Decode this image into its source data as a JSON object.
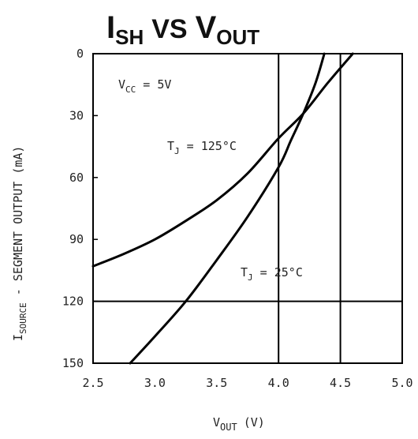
{
  "chart_data": {
    "type": "line",
    "title": {
      "main_I": "I",
      "main_I_sub": "SH",
      "vs": "VS",
      "main_V": "V",
      "main_V_sub": "OUT"
    },
    "xlabel": {
      "main": "V",
      "sub": "OUT",
      "unit": "(V)"
    },
    "ylabel": {
      "main": "I",
      "sub": "SOURCE",
      "rest": " - SEGMENT OUTPUT (mA)"
    },
    "xlim": [
      2.5,
      5.0
    ],
    "ylim": [
      0,
      150
    ],
    "y_inverted": true,
    "x_ticks": [
      "2.5",
      "3.0",
      "3.5",
      "4.0",
      "4.5",
      "5.0"
    ],
    "y_ticks": [
      "0",
      "30",
      "60",
      "90",
      "120",
      "150"
    ],
    "grid": "partial",
    "annotations": [
      {
        "text_main": "V",
        "text_sub": "CC",
        "text_rest": " = 5V"
      },
      {
        "text_main": "T",
        "text_sub": "J",
        "text_rest": " = 125°C"
      },
      {
        "text_main": "T",
        "text_sub": "J",
        "text_rest": " = 25°C"
      }
    ],
    "series": [
      {
        "x": [
          2.5,
          2.75,
          3.0,
          3.25,
          3.5,
          3.75,
          4.0,
          4.2,
          4.4,
          4.6
        ],
        "y": [
          103,
          97,
          90,
          81,
          71,
          58,
          41,
          29,
          14,
          0
        ]
      },
      {
        "x": [
          2.8,
          3.0,
          3.25,
          3.5,
          3.75,
          4.0,
          4.1,
          4.2,
          4.3,
          4.37
        ],
        "y": [
          150,
          137,
          120,
          100,
          79,
          55,
          42,
          29,
          14,
          0
        ]
      }
    ]
  }
}
